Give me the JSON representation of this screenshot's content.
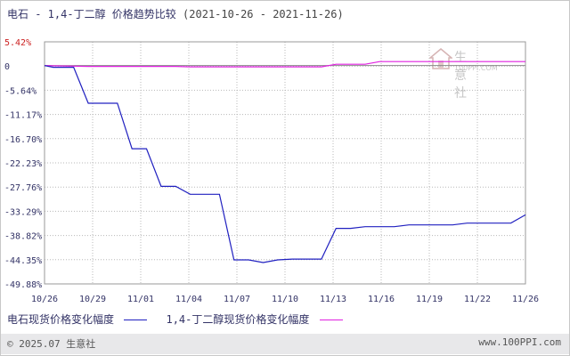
{
  "title": {
    "main": "电石 - 1,4-丁二醇 价格趋势比较",
    "date_range": "(2021-10-26 - 2021-11-26)"
  },
  "watermark": {
    "name": "生意社",
    "url": "100PPI.COM"
  },
  "legend": [
    {
      "label": "电石现货价格变化幅度",
      "color": "#2020c0"
    },
    {
      "label": "1,4-丁二醇现货价格变化幅度",
      "color": "#e020e0"
    }
  ],
  "footer": {
    "left": "© 2025.07 生意社",
    "right": "www.100PPI.com"
  },
  "chart_data": {
    "type": "line",
    "title": "电石 - 1,4-丁二醇 价格趋势比较",
    "x_tick_labels": [
      "10/26",
      "10/29",
      "11/01",
      "11/04",
      "11/07",
      "11/10",
      "11/13",
      "11/16",
      "11/19",
      "11/22",
      "11/26"
    ],
    "y_tick_labels": [
      "5.42%",
      "0",
      "-5.64%",
      "-11.17%",
      "-16.70%",
      "-22.23%",
      "-27.76%",
      "-33.29%",
      "-38.82%",
      "-44.35%",
      "-49.88%"
    ],
    "ylim": [
      -49.88,
      5.42
    ],
    "x_unit": "day offset from 10/26",
    "series": [
      {
        "name": "电石现货价格变化幅度",
        "color": "#2020c0",
        "points": [
          [
            0,
            0
          ],
          [
            0.6,
            -0.4
          ],
          [
            2,
            -0.4
          ],
          [
            3,
            -8.6
          ],
          [
            5,
            -8.6
          ],
          [
            6,
            -19.0
          ],
          [
            7,
            -19.0
          ],
          [
            8,
            -27.6
          ],
          [
            9,
            -27.6
          ],
          [
            10,
            -29.4
          ],
          [
            12,
            -29.4
          ],
          [
            13,
            -44.4
          ],
          [
            14,
            -44.4
          ],
          [
            15,
            -45.0
          ],
          [
            16,
            -44.4
          ],
          [
            17,
            -44.2
          ],
          [
            19,
            -44.2
          ],
          [
            20,
            -37.2
          ],
          [
            21,
            -37.2
          ],
          [
            22,
            -36.8
          ],
          [
            24,
            -36.8
          ],
          [
            25,
            -36.4
          ],
          [
            28,
            -36.4
          ],
          [
            29,
            -36.0
          ],
          [
            32,
            -36.0
          ],
          [
            33,
            -34.1
          ]
        ]
      },
      {
        "name": "1,4-丁二醇现货价格变化幅度",
        "color": "#e020e0",
        "points": [
          [
            0,
            0
          ],
          [
            3,
            -0.2
          ],
          [
            9,
            -0.2
          ],
          [
            10,
            -0.3
          ],
          [
            19,
            -0.3
          ],
          [
            20,
            0.3
          ],
          [
            22,
            0.3
          ],
          [
            23,
            0.9
          ],
          [
            33,
            0.9
          ]
        ]
      }
    ],
    "grid": true,
    "legend_position": "bottom-left"
  }
}
